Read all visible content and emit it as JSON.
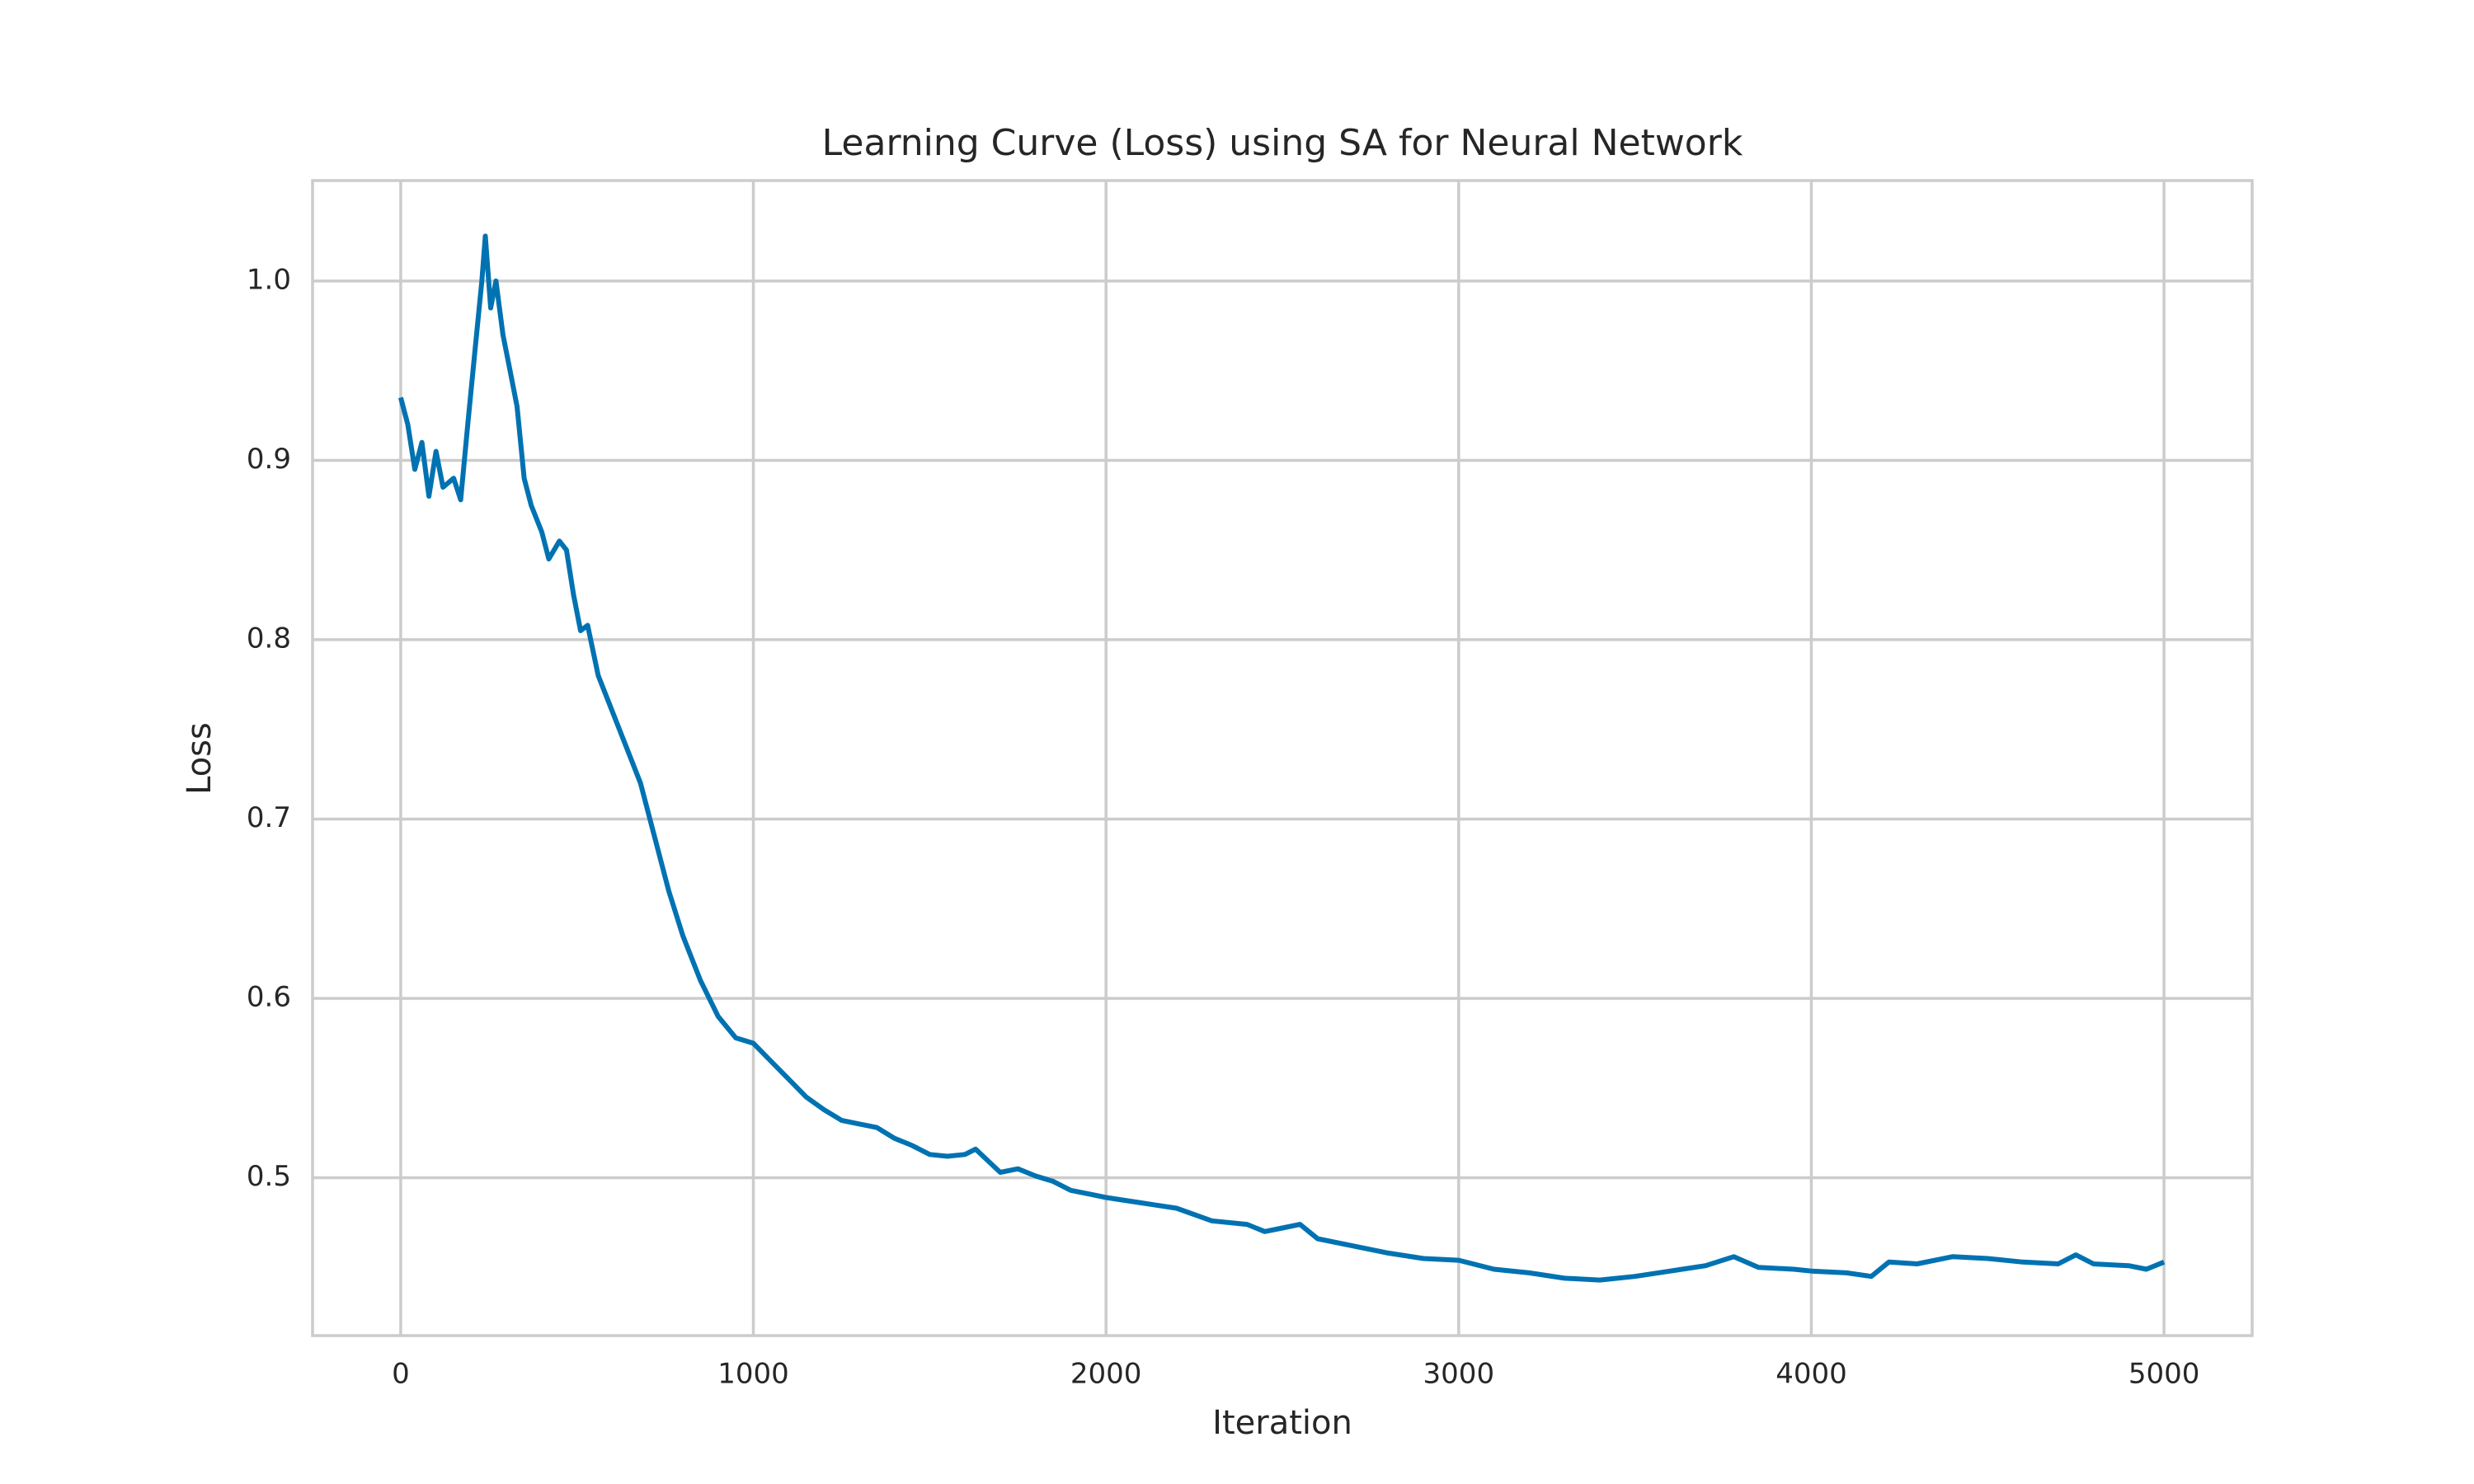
{
  "chart_data": {
    "type": "line",
    "title": "Learning Curve (Loss) using SA for Neural Network",
    "x_label": "Iteration",
    "y_label": "Loss",
    "x": [
      0,
      20,
      40,
      60,
      80,
      100,
      120,
      150,
      170,
      190,
      210,
      230,
      240,
      255,
      270,
      290,
      310,
      330,
      350,
      370,
      400,
      420,
      450,
      470,
      490,
      510,
      530,
      560,
      600,
      640,
      680,
      720,
      760,
      800,
      850,
      900,
      950,
      1000,
      1050,
      1100,
      1150,
      1200,
      1250,
      1300,
      1350,
      1400,
      1450,
      1500,
      1550,
      1600,
      1630,
      1700,
      1750,
      1800,
      1850,
      1900,
      1950,
      2000,
      2100,
      2200,
      2300,
      2400,
      2450,
      2500,
      2550,
      2600,
      2700,
      2800,
      2900,
      3000,
      3100,
      3200,
      3300,
      3400,
      3500,
      3600,
      3700,
      3780,
      3850,
      3950,
      4000,
      4100,
      4170,
      4220,
      4300,
      4400,
      4500,
      4600,
      4700,
      4750,
      4800,
      4900,
      4950,
      5000
    ],
    "values": [
      0.935,
      0.92,
      0.895,
      0.91,
      0.88,
      0.905,
      0.885,
      0.89,
      0.878,
      0.92,
      0.96,
      1.0,
      1.025,
      0.985,
      1.0,
      0.97,
      0.95,
      0.93,
      0.89,
      0.875,
      0.86,
      0.845,
      0.855,
      0.85,
      0.825,
      0.805,
      0.808,
      0.78,
      0.76,
      0.74,
      0.72,
      0.69,
      0.66,
      0.635,
      0.61,
      0.59,
      0.578,
      0.575,
      0.565,
      0.555,
      0.545,
      0.538,
      0.532,
      0.53,
      0.528,
      0.522,
      0.518,
      0.513,
      0.512,
      0.513,
      0.516,
      0.503,
      0.505,
      0.501,
      0.498,
      0.493,
      0.491,
      0.489,
      0.486,
      0.483,
      0.476,
      0.474,
      0.47,
      0.472,
      0.474,
      0.466,
      0.462,
      0.458,
      0.455,
      0.454,
      0.449,
      0.447,
      0.444,
      0.443,
      0.445,
      0.448,
      0.451,
      0.456,
      0.45,
      0.449,
      0.448,
      0.447,
      0.445,
      0.453,
      0.452,
      0.456,
      0.455,
      0.453,
      0.452,
      0.457,
      0.452,
      0.451,
      0.449,
      0.453
    ],
    "color": "#0072b2",
    "xlim": [
      -250,
      5250
    ],
    "xticks": [
      0,
      1000,
      2000,
      3000,
      4000,
      5000
    ],
    "ylim": [
      0.412,
      1.056
    ],
    "yticks": [
      0.5,
      0.6,
      0.7,
      0.8,
      0.9,
      {
        "value": 1,
        "label": "1.0"
      }
    ],
    "grid": true
  }
}
